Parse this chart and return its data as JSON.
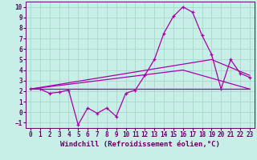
{
  "xlabel": "Windchill (Refroidissement éolien,°C)",
  "background_color": "#c8eee8",
  "grid_color": "#aad8cc",
  "line_color": "#aa00aa",
  "xlim": [
    -0.5,
    23.5
  ],
  "ylim": [
    -1.5,
    10.5
  ],
  "xticks": [
    0,
    1,
    2,
    3,
    4,
    5,
    6,
    7,
    8,
    9,
    10,
    11,
    12,
    13,
    14,
    15,
    16,
    17,
    18,
    19,
    20,
    21,
    22,
    23
  ],
  "yticks": [
    -1,
    0,
    1,
    2,
    3,
    4,
    5,
    6,
    7,
    8,
    9,
    10
  ],
  "main_series_x": [
    0,
    1,
    2,
    3,
    4,
    5,
    6,
    7,
    8,
    9,
    10,
    11,
    12,
    13,
    14,
    15,
    16,
    17,
    18,
    19,
    20,
    21,
    22,
    23
  ],
  "main_series_y": [
    2.2,
    2.2,
    1.8,
    1.9,
    2.1,
    -1.2,
    0.4,
    -0.1,
    0.4,
    -0.4,
    1.8,
    2.1,
    3.5,
    5.0,
    7.5,
    9.1,
    10.0,
    9.5,
    7.3,
    5.5,
    2.2,
    5.0,
    3.7,
    3.3
  ],
  "flat_line_x": [
    0,
    23
  ],
  "flat_line_y": [
    2.2,
    2.2
  ],
  "trend1_x": [
    0,
    16,
    23
  ],
  "trend1_y": [
    2.2,
    4.0,
    2.2
  ],
  "trend2_x": [
    0,
    19,
    23
  ],
  "trend2_y": [
    2.2,
    5.0,
    3.5
  ],
  "font_color": "#660066",
  "tick_fontsize": 5.5,
  "label_fontsize": 6.5
}
